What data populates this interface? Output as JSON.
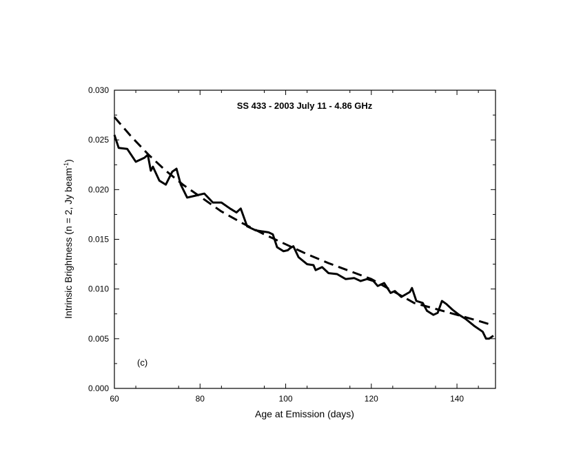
{
  "chart_data": {
    "type": "line",
    "title": "SS 433  -  2003 July 11  -  4.86 GHz",
    "xlabel": "Age at Emission (days)",
    "ylabel": "Intrinsic Brightness (n = 2, Jy beam",
    "ylabel_superscript": "-1",
    "ylabel_suffix": ")",
    "panel_label": "(c)",
    "xlim": [
      60,
      149
    ],
    "ylim": [
      0.0,
      0.03
    ],
    "x_ticks": [
      60,
      80,
      100,
      120,
      140
    ],
    "x_tick_labels": [
      "60",
      "80",
      "100",
      "120",
      "140"
    ],
    "y_ticks": [
      0.0,
      0.005,
      0.01,
      0.015,
      0.02,
      0.025,
      0.03
    ],
    "y_tick_labels": [
      "0.000",
      "0.005",
      "0.010",
      "0.015",
      "0.020",
      "0.025",
      "0.030"
    ],
    "grid": false,
    "series": [
      {
        "style": "solid",
        "color": "#000000",
        "x": [
          60,
          61,
          63,
          65,
          67,
          67.8,
          68.5,
          69,
          70.5,
          72,
          73.5,
          74.5,
          75.5,
          77,
          79,
          81,
          83,
          85,
          87,
          88.5,
          89.5,
          91,
          93,
          96,
          97,
          98,
          99.5,
          100.5,
          101,
          101.8,
          103,
          105,
          106.5,
          107,
          108.5,
          110,
          112,
          114,
          116,
          117.5,
          119,
          120.5,
          121.5,
          123,
          124.5,
          125.5,
          127,
          129,
          129.5,
          130.5,
          132,
          133,
          134.5,
          135.5,
          136.5,
          137.5,
          139,
          140.5,
          142,
          144,
          146,
          146.8,
          147.5,
          148.5
        ],
        "y": [
          0.0255,
          0.0242,
          0.0241,
          0.0228,
          0.0232,
          0.0235,
          0.0219,
          0.0223,
          0.0209,
          0.0205,
          0.0218,
          0.0221,
          0.0205,
          0.0192,
          0.0194,
          0.0196,
          0.0187,
          0.0187,
          0.0181,
          0.0177,
          0.0181,
          0.0163,
          0.0159,
          0.0157,
          0.0155,
          0.0142,
          0.0138,
          0.0139,
          0.0141,
          0.0143,
          0.0132,
          0.0125,
          0.0124,
          0.0119,
          0.0122,
          0.0116,
          0.0115,
          0.011,
          0.0111,
          0.0108,
          0.011,
          0.0108,
          0.0103,
          0.0106,
          0.0096,
          0.0098,
          0.0092,
          0.0097,
          0.0101,
          0.0088,
          0.0086,
          0.0078,
          0.0074,
          0.0076,
          0.0088,
          0.0085,
          0.0079,
          0.0074,
          0.007,
          0.0063,
          0.0057,
          0.005,
          0.005,
          0.0053
        ]
      },
      {
        "style": "dashed",
        "color": "#000000",
        "x": [
          60,
          64,
          68,
          72,
          76,
          80,
          85,
          90,
          95,
          100,
          105,
          110,
          115,
          120,
          125,
          130,
          135,
          140,
          145,
          148
        ],
        "y": [
          0.0273,
          0.0253,
          0.0235,
          0.0219,
          0.0205,
          0.0193,
          0.0178,
          0.0166,
          0.0155,
          0.0145,
          0.0135,
          0.0126,
          0.0118,
          0.011,
          0.0098,
          0.0086,
          0.008,
          0.0074,
          0.0068,
          0.0064
        ]
      }
    ]
  }
}
